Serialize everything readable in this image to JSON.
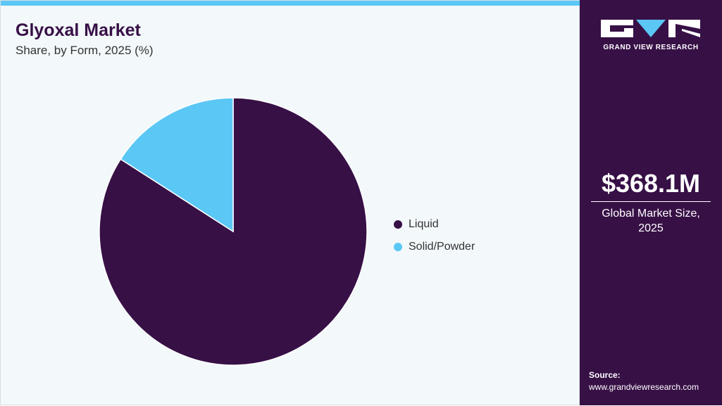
{
  "header": {
    "title": "Glyoxal Market",
    "subtitle": "Share, by Form, 2025 (%)"
  },
  "sidebar": {
    "brand": "GRAND VIEW RESEARCH",
    "value": "$368.1M",
    "caption_line1": "Global Market Size,",
    "caption_line2": "2025",
    "source_label": "Source:",
    "source_url": "www.grandviewresearch.com"
  },
  "colors": {
    "accent": "#5bc7f5",
    "brand": "#371046"
  },
  "chart_data": {
    "type": "pie",
    "title": "Glyoxal Market",
    "subtitle": "Share, by Form, 2025 (%)",
    "legend_position": "right",
    "series": [
      {
        "name": "Liquid",
        "value": 84.1,
        "color": "#371046"
      },
      {
        "name": "Solid/Powder",
        "value": 15.9,
        "color": "#5bc7f5"
      }
    ]
  }
}
